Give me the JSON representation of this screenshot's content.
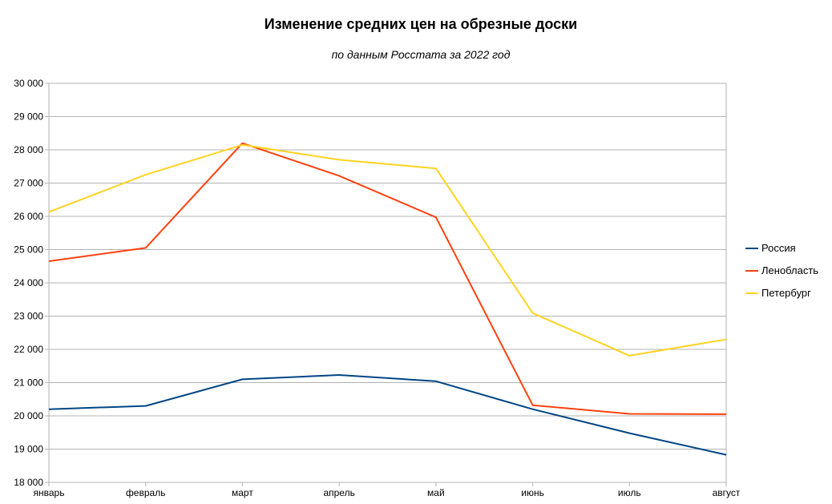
{
  "chart_data": {
    "type": "line",
    "title": "Изменение средних цен на обрезные доски",
    "subtitle": "по данным Росстата за 2022 год",
    "xlabel": "",
    "ylabel": "",
    "categories": [
      "январь",
      "февраль",
      "март",
      "апрель",
      "май",
      "июнь",
      "июль",
      "август"
    ],
    "ylim": [
      18000,
      30000
    ],
    "yticks": [
      18000,
      19000,
      20000,
      21000,
      22000,
      23000,
      24000,
      25000,
      26000,
      27000,
      28000,
      29000,
      30000
    ],
    "ytick_labels": [
      "18 000",
      "19 000",
      "20 000",
      "21 000",
      "22 000",
      "23 000",
      "24 000",
      "25 000",
      "26 000",
      "27 000",
      "28 000",
      "29 000",
      "30 000"
    ],
    "grid": "horizontal",
    "legend_position": "right",
    "series": [
      {
        "name": "Россия",
        "color": "#004586",
        "values": [
          20200,
          20300,
          21100,
          21230,
          21040,
          20200,
          19480,
          18830
        ]
      },
      {
        "name": "Ленобласть",
        "color": "#ff420e",
        "values": [
          24650,
          25050,
          28200,
          27220,
          25970,
          20320,
          20060,
          20050
        ]
      },
      {
        "name": "Петербург",
        "color": "#ffd320",
        "values": [
          26130,
          27250,
          28150,
          27700,
          27440,
          23090,
          21810,
          22300
        ]
      }
    ]
  }
}
